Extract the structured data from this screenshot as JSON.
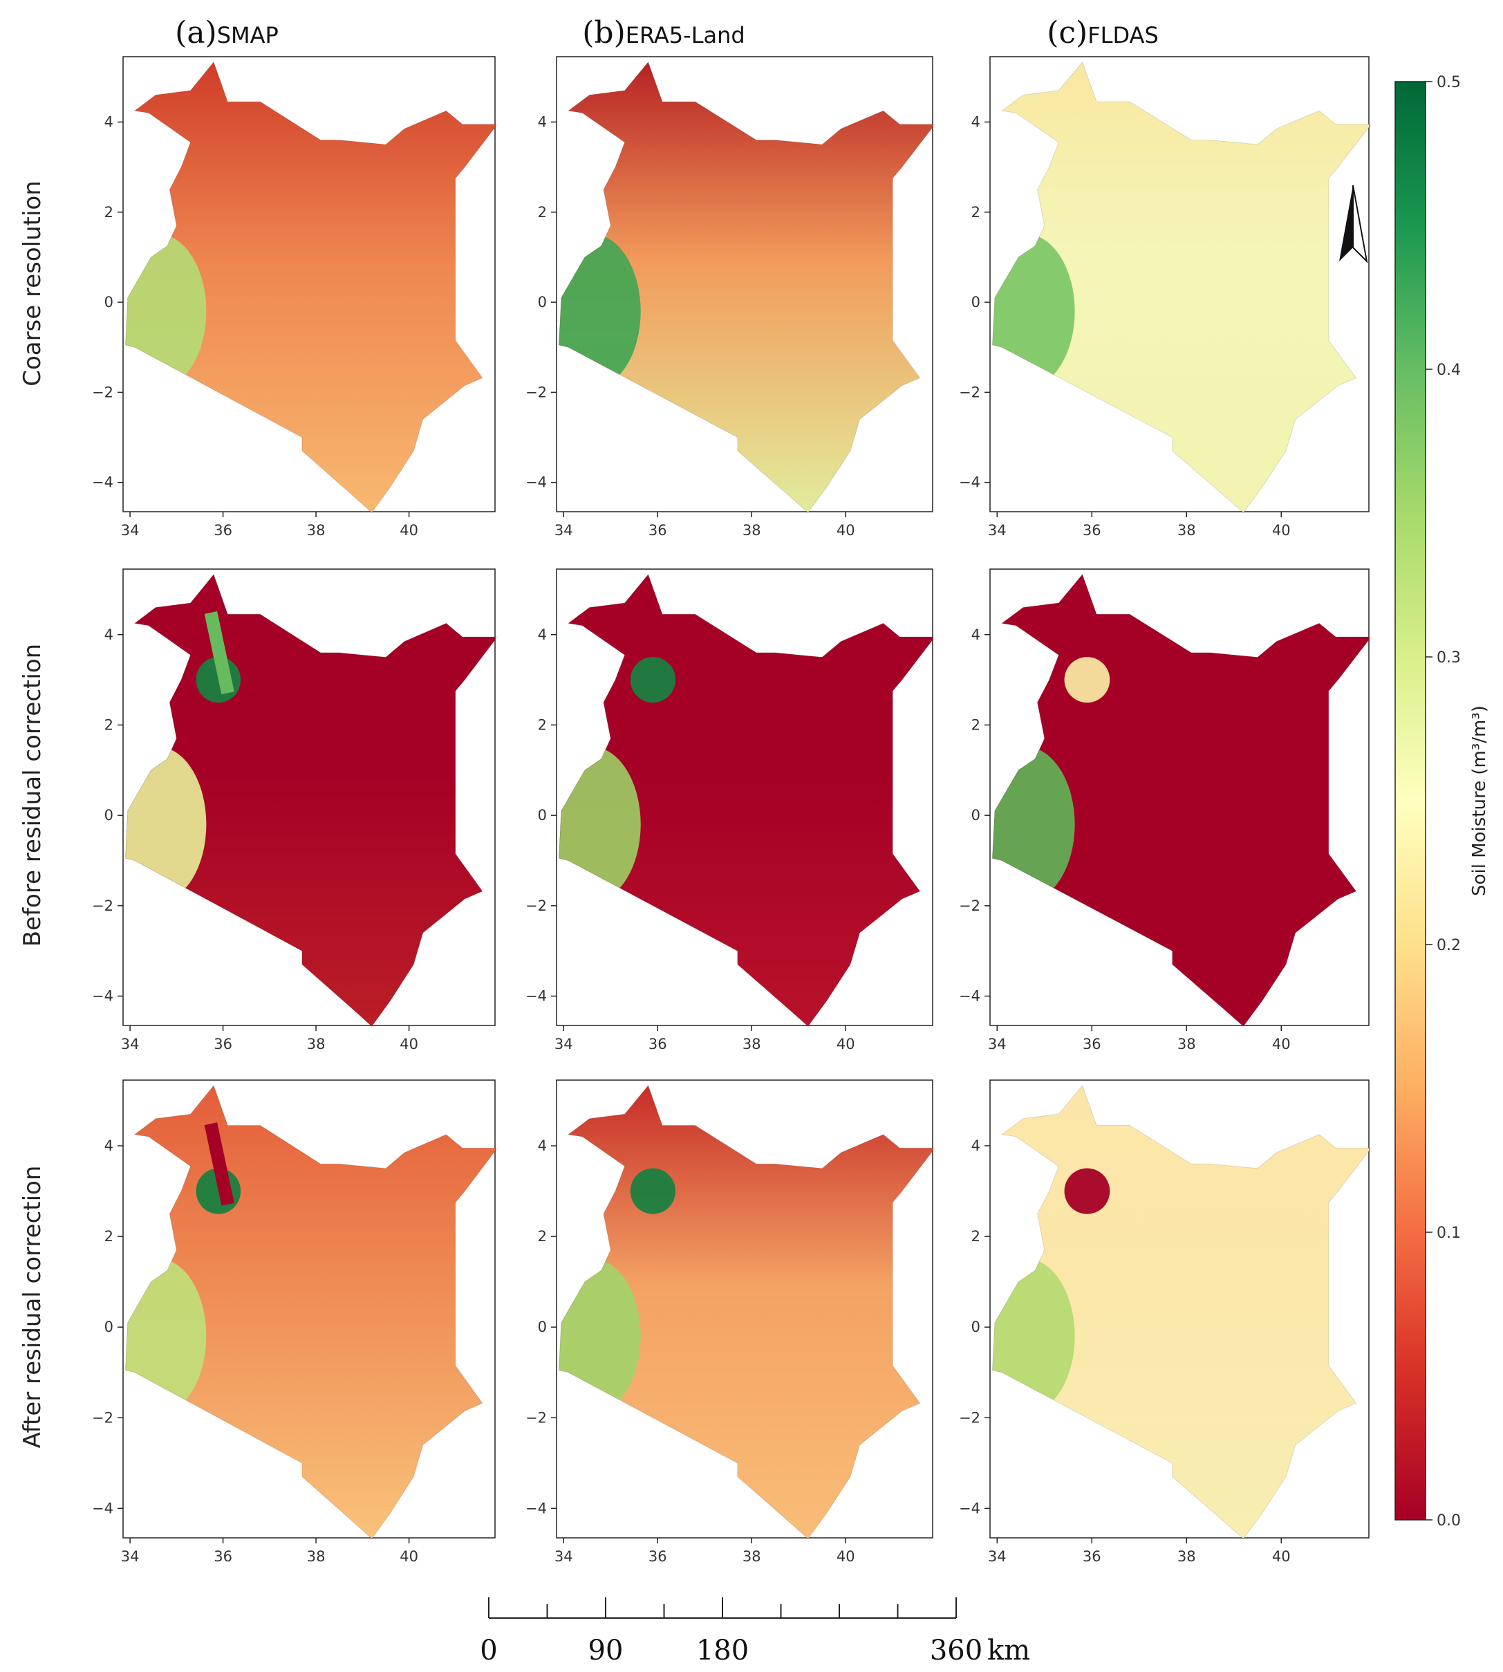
{
  "columns": [
    {
      "letter": "(a)",
      "name": "SMAP"
    },
    {
      "letter": "(b)",
      "name": "ERA5-Land"
    },
    {
      "letter": "(c)",
      "name": "FLDAS"
    }
  ],
  "rows": [
    "Coarse resolution",
    "Before residual correction",
    "After residual correction"
  ],
  "axes": {
    "x_ticks": [
      "34",
      "36",
      "38",
      "40"
    ],
    "y_ticks": [
      "4",
      "2",
      "0",
      "−2",
      "−4"
    ]
  },
  "colorbar": {
    "label": "Soil Moisture (m³/m³)",
    "ticks": [
      "0.0",
      "0.1",
      "0.2",
      "0.3",
      "0.4",
      "0.5"
    ],
    "min": 0.0,
    "max": 0.5,
    "colormap": "RdYlGn",
    "stops": [
      "#a50026",
      "#d73027",
      "#f46d43",
      "#fdae61",
      "#fee08b",
      "#ffffbf",
      "#d9ef8b",
      "#a6d96a",
      "#66bd63",
      "#1a9850",
      "#006837"
    ]
  },
  "scale_bar": {
    "ticks": [
      "0",
      "90",
      "180",
      "360"
    ],
    "unit": "km"
  },
  "north_arrow": "north-arrow-icon",
  "panels": [
    {
      "row": 0,
      "col": 0,
      "base": "#ee8650",
      "north": "#cf3b28",
      "south": "#f8b870",
      "west": "#b4db75",
      "spots": []
    },
    {
      "row": 0,
      "col": 1,
      "base": "#f29b5b",
      "north": "#b51f22",
      "south": "#e2ec9c",
      "west": "#3fa653",
      "spots": []
    },
    {
      "row": 0,
      "col": 2,
      "base": "#f4f6b8",
      "north": "#f9e7a0",
      "south": "#f2f3b0",
      "west": "#7ac566",
      "spots": []
    },
    {
      "row": 1,
      "col": 0,
      "base": "#a50026",
      "north": "#a50026",
      "south": "#bb1e26",
      "west": "#e8f09a",
      "spots": [
        "#1a7f40",
        "#67bb5e"
      ]
    },
    {
      "row": 1,
      "col": 1,
      "base": "#a50026",
      "north": "#a50026",
      "south": "#b8122a",
      "west": "#9ccf65",
      "spots": [
        "#1a7f40"
      ]
    },
    {
      "row": 1,
      "col": 2,
      "base": "#a50026",
      "north": "#a50026",
      "south": "#a50026",
      "west": "#5fb65a",
      "spots": [
        "#f7e5a0"
      ]
    },
    {
      "row": 2,
      "col": 0,
      "base": "#ef8c55",
      "north": "#e35c38",
      "south": "#f9c27b",
      "west": "#bfe07a",
      "spots": [
        "#1a7f40",
        "#a50026"
      ]
    },
    {
      "row": 2,
      "col": 1,
      "base": "#f4a264",
      "north": "#c52a26",
      "south": "#f9bd78",
      "west": "#a2d36a",
      "spots": [
        "#1a7f40"
      ]
    },
    {
      "row": 2,
      "col": 2,
      "base": "#fbe7aa",
      "north": "#fce5a8",
      "south": "#f8eeb2",
      "west": "#b2d96f",
      "spots": [
        "#a50026"
      ]
    }
  ]
}
